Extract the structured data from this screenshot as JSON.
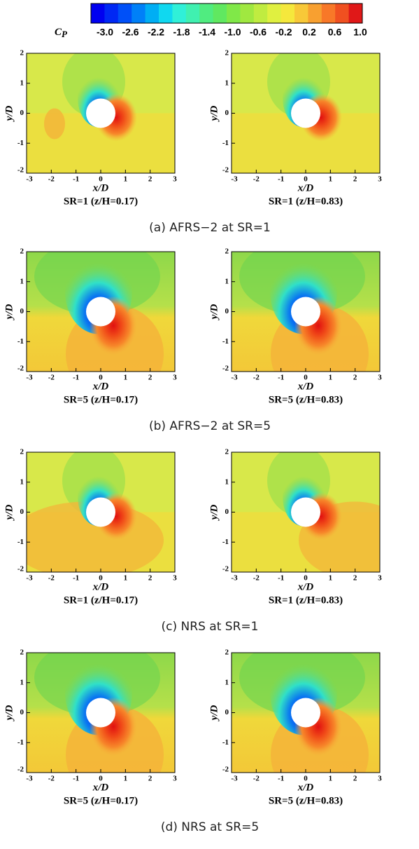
{
  "colorbar": {
    "label": "C",
    "subscript": "P",
    "ticks": [
      "-3.0",
      "-2.6",
      "-2.2",
      "-1.8",
      "-1.4",
      "-1.0",
      "-0.6",
      "-0.2",
      "0.2",
      "0.6",
      "1.0"
    ]
  },
  "axes": {
    "x_label": "x/D",
    "y_label": "y/D",
    "xticks": [
      "-3",
      "-2",
      "-1",
      "0",
      "1",
      "2",
      "3"
    ],
    "yticks": [
      "2",
      "1",
      "0",
      "-1",
      "-2"
    ]
  },
  "panels": [
    {
      "caption": "(a) AFRS−2 at SR=1",
      "titles": [
        "SR=1 (z/H=0.17)",
        "SR=1 (z/H=0.83)"
      ]
    },
    {
      "caption": "(b) AFRS−2 at SR=5",
      "titles": [
        "SR=5 (z/H=0.17)",
        "SR=5 (z/H=0.83)"
      ]
    },
    {
      "caption": "(c) NRS at SR=1",
      "titles": [
        "SR=1 (z/H=0.17)",
        "SR=1 (z/H=0.83)"
      ]
    },
    {
      "caption": "(d) NRS at SR=5",
      "titles": [
        "SR=5 (z/H=0.17)",
        "SR=5 (z/H=0.83)"
      ]
    }
  ]
}
